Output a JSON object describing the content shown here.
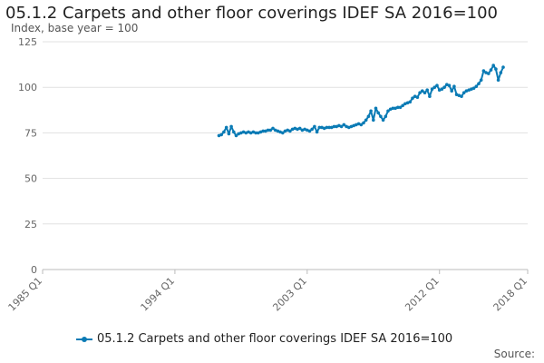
{
  "chart_data": {
    "type": "line",
    "title": "05.1.2 Carpets and other floor coverings IDEF SA 2016=100",
    "ylabel": "Index, base year = 100",
    "xlabel": "",
    "ylim": [
      0,
      125
    ],
    "y_ticks": [
      "0",
      "25",
      "50",
      "75",
      "100",
      "125"
    ],
    "x_ticks": [
      "1985 Q1",
      "1994 Q1",
      "2003 Q1",
      "2012 Q1",
      "2018 Q1"
    ],
    "xlim": [
      "1985-01",
      "2018-01"
    ],
    "grid": "horizontal",
    "legend_position": "bottom",
    "series": [
      {
        "name": "05.1.2 Carpets and other floor coverings IDEF SA 2016=100",
        "color": "#0b7bb5",
        "points": [
          [
            "1997-01",
            73.5
          ],
          [
            "1997-03",
            74.0
          ],
          [
            "1997-05",
            75.5
          ],
          [
            "1997-07",
            78.0
          ],
          [
            "1997-09",
            74.5
          ],
          [
            "1997-11",
            78.5
          ],
          [
            "1998-01",
            75.5
          ],
          [
            "1998-03",
            73.5
          ],
          [
            "1998-05",
            74.5
          ],
          [
            "1998-07",
            75.0
          ],
          [
            "1998-09",
            75.5
          ],
          [
            "1998-11",
            75.0
          ],
          [
            "1999-01",
            75.5
          ],
          [
            "1999-03",
            75.0
          ],
          [
            "1999-05",
            75.5
          ],
          [
            "1999-07",
            75.0
          ],
          [
            "1999-09",
            75.0
          ],
          [
            "1999-11",
            75.5
          ],
          [
            "2000-01",
            76.0
          ],
          [
            "2000-03",
            76.0
          ],
          [
            "2000-05",
            76.5
          ],
          [
            "2000-07",
            76.5
          ],
          [
            "2000-09",
            77.5
          ],
          [
            "2000-11",
            76.5
          ],
          [
            "2001-01",
            76.0
          ],
          [
            "2001-03",
            75.5
          ],
          [
            "2001-05",
            75.0
          ],
          [
            "2001-07",
            76.0
          ],
          [
            "2001-09",
            76.5
          ],
          [
            "2001-11",
            76.0
          ],
          [
            "2002-01",
            77.0
          ],
          [
            "2002-03",
            77.5
          ],
          [
            "2002-05",
            77.0
          ],
          [
            "2002-07",
            77.5
          ],
          [
            "2002-09",
            76.5
          ],
          [
            "2002-11",
            77.0
          ],
          [
            "2003-01",
            76.5
          ],
          [
            "2003-03",
            76.0
          ],
          [
            "2003-05",
            77.0
          ],
          [
            "2003-07",
            78.5
          ],
          [
            "2003-09",
            75.5
          ],
          [
            "2003-11",
            78.0
          ],
          [
            "2004-01",
            78.0
          ],
          [
            "2004-03",
            77.5
          ],
          [
            "2004-05",
            78.0
          ],
          [
            "2004-07",
            78.0
          ],
          [
            "2004-09",
            78.0
          ],
          [
            "2004-11",
            78.5
          ],
          [
            "2005-01",
            78.5
          ],
          [
            "2005-03",
            79.0
          ],
          [
            "2005-05",
            78.5
          ],
          [
            "2005-07",
            79.5
          ],
          [
            "2005-09",
            78.5
          ],
          [
            "2005-11",
            78.0
          ],
          [
            "2006-01",
            78.5
          ],
          [
            "2006-03",
            79.0
          ],
          [
            "2006-05",
            79.5
          ],
          [
            "2006-07",
            80.0
          ],
          [
            "2006-09",
            79.5
          ],
          [
            "2006-11",
            80.5
          ],
          [
            "2007-01",
            82.0
          ],
          [
            "2007-03",
            84.0
          ],
          [
            "2007-05",
            87.0
          ],
          [
            "2007-07",
            82.0
          ],
          [
            "2007-09",
            88.5
          ],
          [
            "2007-11",
            86.0
          ],
          [
            "2008-01",
            84.0
          ],
          [
            "2008-03",
            82.0
          ],
          [
            "2008-05",
            84.0
          ],
          [
            "2008-07",
            87.0
          ],
          [
            "2008-09",
            88.0
          ],
          [
            "2008-11",
            88.5
          ],
          [
            "2009-01",
            88.5
          ],
          [
            "2009-03",
            89.0
          ],
          [
            "2009-05",
            89.0
          ],
          [
            "2009-07",
            90.0
          ],
          [
            "2009-09",
            91.0
          ],
          [
            "2009-11",
            91.5
          ],
          [
            "2010-01",
            92.0
          ],
          [
            "2010-03",
            94.0
          ],
          [
            "2010-05",
            95.0
          ],
          [
            "2010-07",
            94.5
          ],
          [
            "2010-09",
            97.0
          ],
          [
            "2010-11",
            98.0
          ],
          [
            "2011-01",
            97.0
          ],
          [
            "2011-03",
            98.5
          ],
          [
            "2011-05",
            95.0
          ],
          [
            "2011-07",
            99.0
          ],
          [
            "2011-09",
            100.0
          ],
          [
            "2011-11",
            101.0
          ],
          [
            "2012-01",
            98.5
          ],
          [
            "2012-03",
            99.0
          ],
          [
            "2012-05",
            100.0
          ],
          [
            "2012-07",
            101.5
          ],
          [
            "2012-09",
            101.0
          ],
          [
            "2012-11",
            98.0
          ],
          [
            "2013-01",
            100.5
          ],
          [
            "2013-03",
            96.0
          ],
          [
            "2013-05",
            95.5
          ],
          [
            "2013-07",
            95.0
          ],
          [
            "2013-09",
            97.0
          ],
          [
            "2013-11",
            98.0
          ],
          [
            "2014-01",
            98.5
          ],
          [
            "2014-03",
            99.0
          ],
          [
            "2014-05",
            99.5
          ],
          [
            "2014-07",
            100.5
          ],
          [
            "2014-09",
            102.0
          ],
          [
            "2014-11",
            104.0
          ],
          [
            "2015-01",
            109.0
          ],
          [
            "2015-03",
            108.0
          ],
          [
            "2015-05",
            107.5
          ],
          [
            "2015-07",
            109.5
          ],
          [
            "2015-09",
            112.0
          ],
          [
            "2015-11",
            110.0
          ],
          [
            "2016-01",
            104.0
          ],
          [
            "2016-03",
            108.0
          ],
          [
            "2016-05",
            111.0
          ]
        ]
      }
    ]
  },
  "footer": {
    "source_label": "Source:"
  }
}
